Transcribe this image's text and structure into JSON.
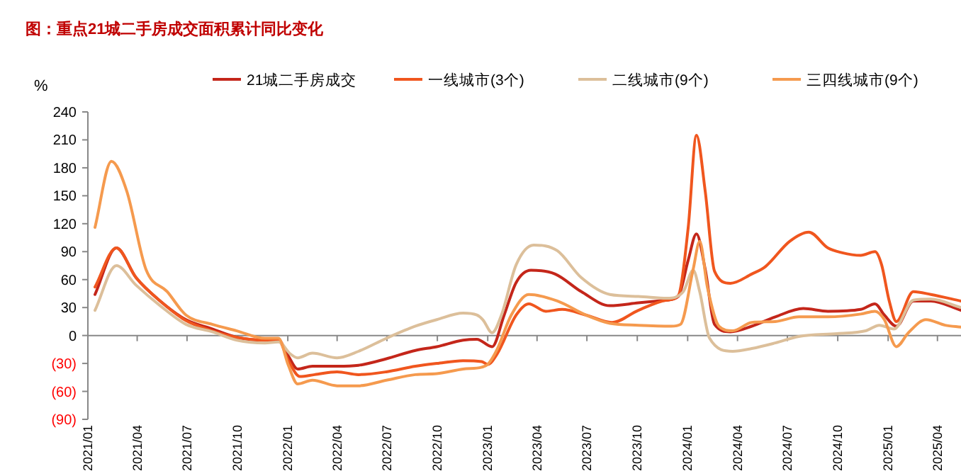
{
  "chart_data": {
    "type": "line",
    "title": "图：重点21城二手房成交面积累计同比变化",
    "ylabel": "%",
    "xlim": [
      "2021-01-01",
      "2025-05-14"
    ],
    "xticks": [
      {
        "value": "2021-01-01",
        "label": "2021/01"
      },
      {
        "value": "2021-04-01",
        "label": "2021/04"
      },
      {
        "value": "2021-07-01",
        "label": "2021/07"
      },
      {
        "value": "2021-10-01",
        "label": "2021/10"
      },
      {
        "value": "2022-01-01",
        "label": "2022/01"
      },
      {
        "value": "2022-04-01",
        "label": "2022/04"
      },
      {
        "value": "2022-07-01",
        "label": "2022/07"
      },
      {
        "value": "2022-10-01",
        "label": "2022/10"
      },
      {
        "value": "2023-01-01",
        "label": "2023/01"
      },
      {
        "value": "2023-04-01",
        "label": "2023/04"
      },
      {
        "value": "2023-07-01",
        "label": "2023/07"
      },
      {
        "value": "2023-10-01",
        "label": "2023/10"
      },
      {
        "value": "2024-01-01",
        "label": "2024/01"
      },
      {
        "value": "2024-04-01",
        "label": "2024/04"
      },
      {
        "value": "2024-07-01",
        "label": "2024/07"
      },
      {
        "value": "2024-10-01",
        "label": "2024/10"
      },
      {
        "value": "2025-01-01",
        "label": "2025/01"
      },
      {
        "value": "2025-04-01",
        "label": "2025/04"
      }
    ],
    "ylim": [
      -90,
      240
    ],
    "yticks": [
      240,
      210,
      180,
      150,
      120,
      90,
      60,
      30,
      0,
      {
        "value": -30,
        "label": "(30)"
      },
      {
        "value": -60,
        "label": "(60)"
      },
      {
        "value": -90,
        "label": "(90)"
      }
    ],
    "ref_lines": [
      {
        "axis": "y",
        "value": 0,
        "color": "#888888",
        "line_style": "solid"
      }
    ],
    "grid": false,
    "legend": "top",
    "marker": "none",
    "line_style": "solid",
    "series": [
      {
        "name": "21城二手房成交",
        "color": "#c4261a",
        "x": [
          "2021-01-14",
          "2021-02-22",
          "2021-03-30",
          "2021-05-13",
          "2021-06-29",
          "2021-08-16",
          "2021-09-30",
          "2021-11-20",
          "2021-12-15",
          "2022-01-02",
          "2022-01-19",
          "2022-02-15",
          "2022-04-01",
          "2022-05-10",
          "2022-06-30",
          "2022-08-22",
          "2022-09-30",
          "2022-11-17",
          "2022-12-12",
          "2023-01-09",
          "2023-01-31",
          "2023-02-22",
          "2023-03-21",
          "2023-05-04",
          "2023-06-21",
          "2023-08-12",
          "2023-10-03",
          "2023-11-24",
          "2023-12-15",
          "2024-01-02",
          "2024-01-17",
          "2024-02-02",
          "2024-02-19",
          "2024-03-19",
          "2024-04-27",
          "2024-06-09",
          "2024-07-30",
          "2024-09-13",
          "2024-11-12",
          "2024-12-08",
          "2024-12-25",
          "2025-01-16",
          "2025-02-16",
          "2025-03-20",
          "2025-05-14"
        ],
        "values": [
          44,
          94,
          62,
          37,
          17,
          7,
          -2,
          -5,
          -5,
          -22,
          -36,
          -33,
          -33,
          -32,
          -25,
          -16,
          -12,
          -5,
          -4,
          -12,
          22,
          57,
          70,
          66,
          47,
          32,
          35,
          38,
          42,
          81,
          109,
          71,
          12,
          4,
          10,
          20,
          29,
          26,
          28,
          34,
          22,
          10,
          37,
          37,
          27
        ]
      },
      {
        "name": "一线城市(3个)",
        "color": "#f0561e",
        "x": [
          "2021-01-14",
          "2021-02-22",
          "2021-03-30",
          "2021-05-13",
          "2021-06-29",
          "2021-08-16",
          "2021-09-30",
          "2021-11-20",
          "2021-12-15",
          "2022-01-02",
          "2022-01-23",
          "2022-02-19",
          "2022-04-01",
          "2022-05-10",
          "2022-06-30",
          "2022-08-22",
          "2022-09-30",
          "2022-11-17",
          "2022-12-21",
          "2023-01-01",
          "2023-01-18",
          "2023-02-22",
          "2023-03-17",
          "2023-04-17",
          "2023-05-17",
          "2023-06-29",
          "2023-08-16",
          "2023-10-03",
          "2023-11-24",
          "2023-12-15",
          "2024-01-02",
          "2024-01-17",
          "2024-02-02",
          "2024-02-19",
          "2024-03-19",
          "2024-04-27",
          "2024-05-22",
          "2024-07-05",
          "2024-08-09",
          "2024-09-13",
          "2024-10-08",
          "2024-11-12",
          "2024-12-08",
          "2024-12-20",
          "2025-01-03",
          "2025-01-16",
          "2025-02-16",
          "2025-03-20",
          "2025-05-14"
        ],
        "values": [
          52,
          94,
          62,
          37,
          16,
          5,
          -2,
          -5,
          -5,
          -27,
          -44,
          -42,
          -39,
          -42,
          -39,
          -33,
          -30,
          -27,
          -28,
          -31,
          -20,
          22,
          34,
          26,
          28,
          22,
          14,
          27,
          38,
          43,
          116,
          215,
          155,
          69,
          56,
          66,
          74,
          101,
          111,
          94,
          89,
          86,
          90,
          76,
          37,
          15,
          47,
          44,
          37
        ]
      },
      {
        "name": "二线城市(9个)",
        "color": "#dcbf9a",
        "x": [
          "2021-01-14",
          "2021-02-22",
          "2021-03-30",
          "2021-05-13",
          "2021-06-29",
          "2021-08-16",
          "2021-09-30",
          "2021-11-20",
          "2021-12-15",
          "2022-01-06",
          "2022-01-19",
          "2022-02-15",
          "2022-04-01",
          "2022-05-10",
          "2022-06-30",
          "2022-08-22",
          "2022-09-30",
          "2022-11-17",
          "2022-12-12",
          "2022-12-23",
          "2023-01-09",
          "2023-01-26",
          "2023-02-22",
          "2023-03-26",
          "2023-05-08",
          "2023-06-21",
          "2023-08-12",
          "2023-10-03",
          "2023-11-24",
          "2023-12-24",
          "2024-01-11",
          "2024-01-23",
          "2024-02-10",
          "2024-03-23",
          "2024-04-27",
          "2024-06-09",
          "2024-07-22",
          "2024-09-30",
          "2024-11-21",
          "2024-12-16",
          "2025-01-12",
          "2025-02-16",
          "2025-03-20",
          "2025-05-14"
        ],
        "values": [
          27,
          75,
          54,
          32,
          12,
          4,
          -5,
          -8,
          -7,
          -20,
          -24,
          -19,
          -24,
          -17,
          -3,
          10,
          17,
          24,
          22,
          17,
          3,
          22,
          76,
          97,
          91,
          62,
          44,
          42,
          40,
          47,
          70,
          47,
          -3,
          -17,
          -14,
          -8,
          -1,
          2,
          5,
          11,
          7,
          38,
          39,
          30
        ]
      },
      {
        "name": "三四线城市(9个)",
        "color": "#f59a4e",
        "x": [
          "2021-01-14",
          "2021-02-13",
          "2021-03-13",
          "2021-04-17",
          "2021-05-26",
          "2021-06-29",
          "2021-08-16",
          "2021-09-30",
          "2021-11-20",
          "2021-12-15",
          "2022-01-02",
          "2022-01-19",
          "2022-02-15",
          "2022-04-01",
          "2022-05-10",
          "2022-06-30",
          "2022-08-22",
          "2022-09-30",
          "2022-11-17",
          "2022-12-21",
          "2023-01-01",
          "2023-01-18",
          "2023-02-13",
          "2023-03-17",
          "2023-05-08",
          "2023-06-29",
          "2023-08-12",
          "2023-10-03",
          "2023-12-02",
          "2023-12-19",
          "2024-01-11",
          "2024-01-23",
          "2024-02-06",
          "2024-02-27",
          "2024-03-23",
          "2024-04-27",
          "2024-06-09",
          "2024-07-22",
          "2024-09-13",
          "2024-11-12",
          "2024-12-08",
          "2024-12-25",
          "2025-01-16",
          "2025-02-07",
          "2025-03-11",
          "2025-04-15",
          "2025-05-14"
        ],
        "values": [
          116,
          187,
          155,
          71,
          47,
          22,
          12,
          5,
          -3,
          -3,
          -32,
          -52,
          -48,
          -54,
          -54,
          -48,
          -42,
          -41,
          -36,
          -34,
          -31,
          -15,
          22,
          44,
          37,
          22,
          13,
          11,
          10,
          12,
          71,
          101,
          52,
          10,
          5,
          14,
          15,
          20,
          20,
          23,
          26,
          17,
          -12,
          3,
          17,
          11,
          9
        ]
      }
    ]
  }
}
